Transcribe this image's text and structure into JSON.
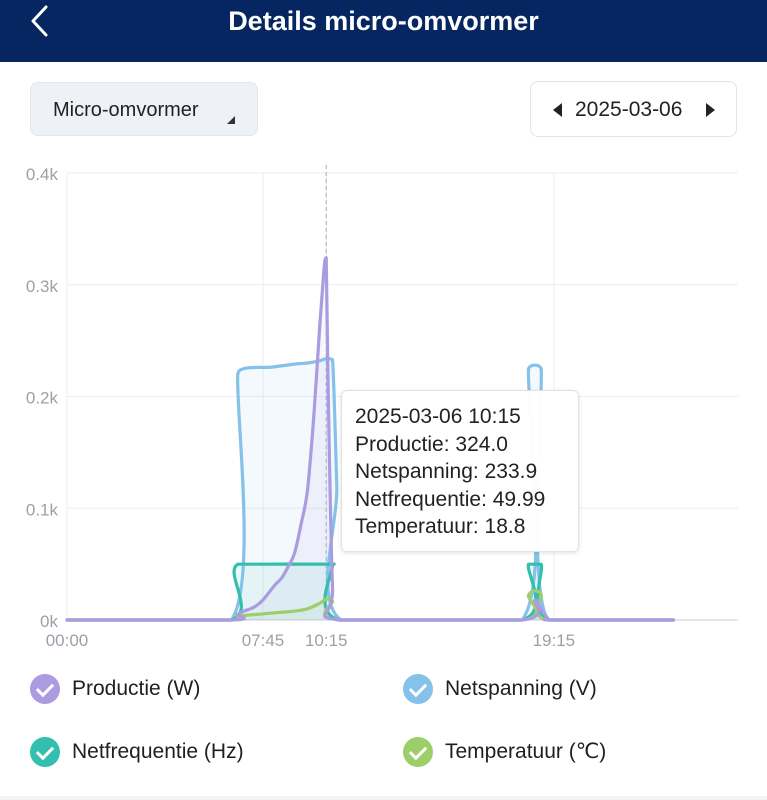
{
  "header": {
    "title": "Details micro-omvormer",
    "back_icon": "chevron-left-icon"
  },
  "device_selector": {
    "label": "Micro-omvormer"
  },
  "date_picker": {
    "value": "2025-03-06"
  },
  "tooltip": {
    "time": "2025-03-06 10:15",
    "lines": [
      "Productie: 324.0",
      "Netspanning: 233.9",
      "Netfrequentie: 49.99",
      "Temperatuur: 18.8"
    ]
  },
  "chart_data": {
    "type": "line",
    "title": "",
    "xlabel": "",
    "ylabel": "",
    "x_ticks": [
      "00:00",
      "07:45",
      "10:15",
      "19:15"
    ],
    "y_ticks": [
      "0k",
      "0.1k",
      "0.2k",
      "0.3k",
      "0.4k"
    ],
    "ylim": [
      0,
      400
    ],
    "grid": true,
    "legend_position": "bottom",
    "highlight_x": "10:15",
    "series": [
      {
        "name": "Productie (W)",
        "color": "#ab9be0",
        "points": [
          [
            "00:00",
            0
          ],
          [
            "06:30",
            0
          ],
          [
            "06:45",
            5
          ],
          [
            "07:00",
            8
          ],
          [
            "07:15",
            10
          ],
          [
            "07:30",
            13
          ],
          [
            "07:45",
            18
          ],
          [
            "08:00",
            25
          ],
          [
            "08:15",
            32
          ],
          [
            "08:30",
            38
          ],
          [
            "08:45",
            48
          ],
          [
            "09:00",
            60
          ],
          [
            "09:15",
            85
          ],
          [
            "09:30",
            115
          ],
          [
            "09:45",
            180
          ],
          [
            "10:00",
            265
          ],
          [
            "10:10",
            315
          ],
          [
            "10:15",
            324
          ],
          [
            "10:20",
            200
          ],
          [
            "10:30",
            30
          ],
          [
            "10:45",
            0
          ],
          [
            "18:00",
            0
          ],
          [
            "18:30",
            18
          ],
          [
            "18:45",
            10
          ],
          [
            "19:00",
            2
          ],
          [
            "19:15",
            0
          ],
          [
            "23:59",
            0
          ]
        ]
      },
      {
        "name": "Netspanning (V)",
        "color": "#85c2ea",
        "points": [
          [
            "00:00",
            0
          ],
          [
            "06:30",
            0
          ],
          [
            "06:45",
            220
          ],
          [
            "07:00",
            225
          ],
          [
            "07:30",
            226
          ],
          [
            "08:00",
            226
          ],
          [
            "09:00",
            229
          ],
          [
            "09:30",
            230
          ],
          [
            "10:00",
            232
          ],
          [
            "10:15",
            233.9
          ],
          [
            "10:30",
            233
          ],
          [
            "10:40",
            120
          ],
          [
            "10:50",
            0
          ],
          [
            "18:00",
            0
          ],
          [
            "18:15",
            225
          ],
          [
            "18:30",
            228
          ],
          [
            "18:45",
            225
          ],
          [
            "19:00",
            0
          ],
          [
            "23:59",
            0
          ]
        ]
      },
      {
        "name": "Netfrequentie (Hz)",
        "color": "#33bfae",
        "points": [
          [
            "00:00",
            0
          ],
          [
            "06:30",
            0
          ],
          [
            "06:45",
            49.9
          ],
          [
            "10:15",
            49.99
          ],
          [
            "10:30",
            49.99
          ],
          [
            "10:45",
            0
          ],
          [
            "18:00",
            0
          ],
          [
            "18:15",
            49.9
          ],
          [
            "18:45",
            49.9
          ],
          [
            "19:00",
            0
          ],
          [
            "23:59",
            0
          ]
        ]
      },
      {
        "name": "Temperatuur (℃)",
        "color": "#9ccf6a",
        "points": [
          [
            "00:00",
            0
          ],
          [
            "06:30",
            0
          ],
          [
            "06:45",
            3
          ],
          [
            "07:00",
            4
          ],
          [
            "08:00",
            6
          ],
          [
            "09:00",
            8
          ],
          [
            "09:30",
            10
          ],
          [
            "10:00",
            15
          ],
          [
            "10:15",
            18.8
          ],
          [
            "10:30",
            17
          ],
          [
            "10:45",
            0
          ],
          [
            "18:00",
            0
          ],
          [
            "18:15",
            22
          ],
          [
            "18:30",
            26
          ],
          [
            "18:45",
            23
          ],
          [
            "19:00",
            0
          ],
          [
            "23:59",
            0
          ]
        ]
      }
    ]
  }
}
